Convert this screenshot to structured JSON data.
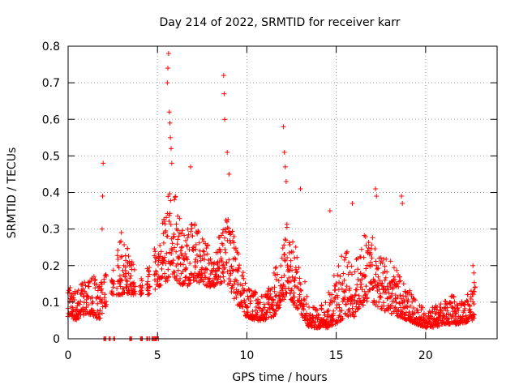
{
  "chart_data": {
    "type": "scatter",
    "title": "Day 214 of 2022, SRMTID for receiver karr",
    "xlabel": "GPS time / hours",
    "ylabel": "SRMTID / TECUs",
    "xlim": [
      0,
      24
    ],
    "ylim": [
      0,
      0.8
    ],
    "x_ticks": [
      0,
      5,
      10,
      15,
      20
    ],
    "x_tick_labels": [
      "0",
      "5",
      "10",
      "15",
      "20"
    ],
    "y_ticks": [
      0,
      0.1,
      0.2,
      0.3,
      0.4,
      0.5,
      0.6,
      0.7,
      0.8
    ],
    "y_tick_labels": [
      "0",
      "0.1",
      "0.2",
      "0.3",
      "0.4",
      "0.5",
      "0.6",
      "0.7",
      "0.8"
    ],
    "grid": true,
    "marker": "+",
    "series": [
      {
        "name": "SRMTID",
        "color": "#ff0000",
        "envelope": {
          "hours": [
            0.0,
            0.5,
            1.0,
            1.5,
            1.8,
            2.0,
            2.5,
            3.0,
            3.5,
            4.0,
            4.5,
            5.0,
            5.3,
            5.6,
            5.8,
            6.2,
            6.6,
            7.0,
            7.5,
            8.0,
            8.5,
            8.8,
            9.2,
            9.6,
            10.0,
            10.5,
            11.0,
            11.5,
            12.0,
            12.2,
            12.5,
            13.0,
            13.5,
            14.0,
            14.5,
            15.0,
            15.5,
            16.0,
            16.5,
            17.0,
            17.5,
            18.0,
            18.5,
            19.0,
            19.5,
            20.0,
            20.5,
            21.0,
            21.5,
            22.0,
            22.5,
            22.8
          ],
          "typical_min": [
            0.06,
            0.05,
            0.07,
            0.06,
            0.05,
            0.08,
            0.12,
            0.12,
            0.12,
            0.12,
            0.12,
            0.14,
            0.15,
            0.16,
            0.18,
            0.15,
            0.14,
            0.16,
            0.15,
            0.14,
            0.15,
            0.16,
            0.12,
            0.08,
            0.06,
            0.05,
            0.05,
            0.06,
            0.1,
            0.12,
            0.1,
            0.07,
            0.03,
            0.03,
            0.03,
            0.04,
            0.06,
            0.06,
            0.09,
            0.1,
            0.08,
            0.07,
            0.06,
            0.05,
            0.04,
            0.03,
            0.03,
            0.04,
            0.04,
            0.04,
            0.05,
            0.05
          ],
          "typical_max": [
            0.15,
            0.14,
            0.16,
            0.18,
            0.15,
            0.18,
            0.2,
            0.3,
            0.22,
            0.18,
            0.2,
            0.27,
            0.32,
            0.4,
            0.45,
            0.35,
            0.3,
            0.32,
            0.28,
            0.25,
            0.3,
            0.35,
            0.3,
            0.22,
            0.15,
            0.13,
            0.12,
            0.18,
            0.25,
            0.33,
            0.28,
            0.22,
            0.1,
            0.08,
            0.12,
            0.2,
            0.25,
            0.2,
            0.28,
            0.3,
            0.22,
            0.22,
            0.18,
            0.14,
            0.1,
            0.08,
            0.09,
            0.1,
            0.12,
            0.1,
            0.14,
            0.18
          ]
        },
        "gaps_hours": [
          [
            1.95,
            2.7
          ],
          [
            3.75,
            5.0
          ]
        ],
        "spikes": [
          {
            "x": 1.9,
            "y": 0.3
          },
          {
            "x": 1.93,
            "y": 0.39
          },
          {
            "x": 1.96,
            "y": 0.48
          },
          {
            "x": 5.55,
            "y": 0.7
          },
          {
            "x": 5.58,
            "y": 0.74
          },
          {
            "x": 5.62,
            "y": 0.78
          },
          {
            "x": 5.66,
            "y": 0.62
          },
          {
            "x": 5.7,
            "y": 0.59
          },
          {
            "x": 5.72,
            "y": 0.55
          },
          {
            "x": 5.76,
            "y": 0.52
          },
          {
            "x": 5.8,
            "y": 0.48
          },
          {
            "x": 6.85,
            "y": 0.47
          },
          {
            "x": 8.7,
            "y": 0.72
          },
          {
            "x": 8.73,
            "y": 0.67
          },
          {
            "x": 8.76,
            "y": 0.6
          },
          {
            "x": 8.9,
            "y": 0.51
          },
          {
            "x": 9.0,
            "y": 0.45
          },
          {
            "x": 12.05,
            "y": 0.58
          },
          {
            "x": 12.1,
            "y": 0.51
          },
          {
            "x": 12.15,
            "y": 0.47
          },
          {
            "x": 12.2,
            "y": 0.43
          },
          {
            "x": 13.0,
            "y": 0.41
          },
          {
            "x": 14.65,
            "y": 0.35
          },
          {
            "x": 15.9,
            "y": 0.37
          },
          {
            "x": 17.2,
            "y": 0.41
          },
          {
            "x": 17.25,
            "y": 0.39
          },
          {
            "x": 18.65,
            "y": 0.39
          },
          {
            "x": 18.7,
            "y": 0.37
          },
          {
            "x": 22.65,
            "y": 0.2
          },
          {
            "x": 22.7,
            "y": 0.18
          }
        ],
        "zeros": [
          2.0,
          2.05,
          2.1,
          2.3,
          2.35,
          2.55,
          2.6,
          3.45,
          3.5,
          3.55,
          4.05,
          4.1,
          4.15,
          4.4,
          4.45,
          4.55,
          4.7,
          4.75,
          4.8,
          4.85,
          4.9,
          4.95,
          5.05
        ]
      }
    ]
  }
}
